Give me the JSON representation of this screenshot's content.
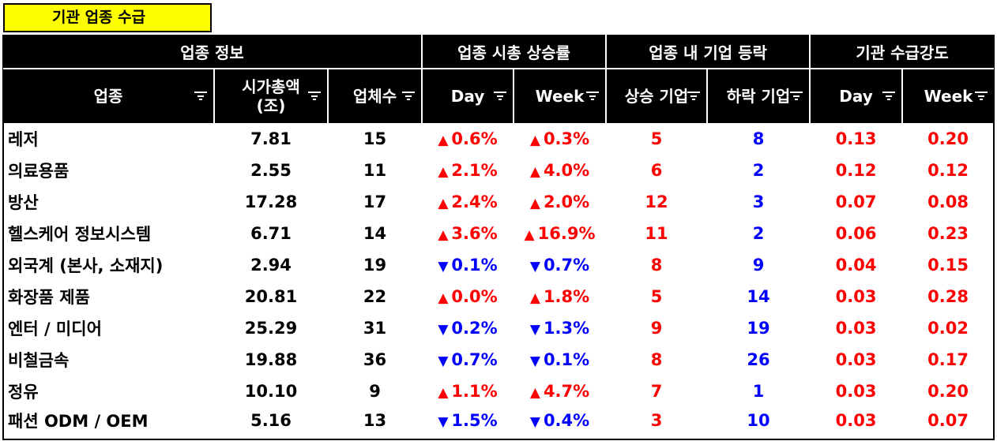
{
  "title": "기관 업종 수급",
  "group_headers": [
    "업종 정보",
    "업종 시총 상승률",
    "업종 내 기업 등락",
    "기관 수급강도"
  ],
  "col_headers": [
    "업종",
    "시가총액\n(조)",
    "업체수",
    "Day",
    "Week",
    "상승 기업",
    "하락 기업",
    "Day",
    "Week"
  ],
  "rows": [
    {
      "name": "레저",
      "cap": "7.81",
      "count": "15",
      "day": "0.6%",
      "day_dir": "up",
      "week": "0.3%",
      "week_dir": "up",
      "rise": "5",
      "fall": "8",
      "inst_day": "0.13",
      "inst_week": "0.20"
    },
    {
      "name": "의료용품",
      "cap": "2.55",
      "count": "11",
      "day": "2.1%",
      "day_dir": "up",
      "week": "4.0%",
      "week_dir": "up",
      "rise": "6",
      "fall": "2",
      "inst_day": "0.12",
      "inst_week": "0.12"
    },
    {
      "name": "방산",
      "cap": "17.28",
      "count": "17",
      "day": "2.4%",
      "day_dir": "up",
      "week": "2.0%",
      "week_dir": "up",
      "rise": "12",
      "fall": "3",
      "inst_day": "0.07",
      "inst_week": "0.08"
    },
    {
      "name": "헬스케어 정보시스템",
      "cap": "6.71",
      "count": "14",
      "day": "3.6%",
      "day_dir": "up",
      "week": "16.9%",
      "week_dir": "up",
      "rise": "11",
      "fall": "2",
      "inst_day": "0.06",
      "inst_week": "0.23"
    },
    {
      "name": "외국계 (본사, 소재지)",
      "cap": "2.94",
      "count": "19",
      "day": "0.1%",
      "day_dir": "down",
      "week": "0.7%",
      "week_dir": "down",
      "rise": "8",
      "fall": "9",
      "inst_day": "0.04",
      "inst_week": "0.15"
    },
    {
      "name": "화장품 제품",
      "cap": "20.81",
      "count": "22",
      "day": "0.0%",
      "day_dir": "up",
      "week": "1.8%",
      "week_dir": "up",
      "rise": "5",
      "fall": "14",
      "inst_day": "0.03",
      "inst_week": "0.28"
    },
    {
      "name": "엔터 / 미디어",
      "cap": "25.29",
      "count": "31",
      "day": "0.2%",
      "day_dir": "down",
      "week": "1.3%",
      "week_dir": "down",
      "rise": "9",
      "fall": "19",
      "inst_day": "0.03",
      "inst_week": "0.02"
    },
    {
      "name": "비철금속",
      "cap": "19.88",
      "count": "36",
      "day": "0.7%",
      "day_dir": "down",
      "week": "0.1%",
      "week_dir": "down",
      "rise": "8",
      "fall": "26",
      "inst_day": "0.03",
      "inst_week": "0.17"
    },
    {
      "name": "정유",
      "cap": "10.10",
      "count": "9",
      "day": "1.1%",
      "day_dir": "up",
      "week": "4.7%",
      "week_dir": "up",
      "rise": "7",
      "fall": "1",
      "inst_day": "0.03",
      "inst_week": "0.20"
    },
    {
      "name": "패션 ODM / OEM",
      "cap": "5.16",
      "count": "13",
      "day": "1.5%",
      "day_dir": "down",
      "week": "0.4%",
      "week_dir": "down",
      "rise": "3",
      "fall": "10",
      "inst_day": "0.03",
      "inst_week": "0.07"
    }
  ],
  "symbols": {
    "up": "▲",
    "down": "▼"
  },
  "colors": {
    "header_bg": "#000000",
    "title_bg": "#ffff00",
    "up": "#ff0000",
    "down": "#0000ff",
    "rise": "#ff0000",
    "fall": "#0000ff",
    "inst": "#ff0000"
  },
  "icons": {
    "filter": "filter-dropdown-icon"
  }
}
